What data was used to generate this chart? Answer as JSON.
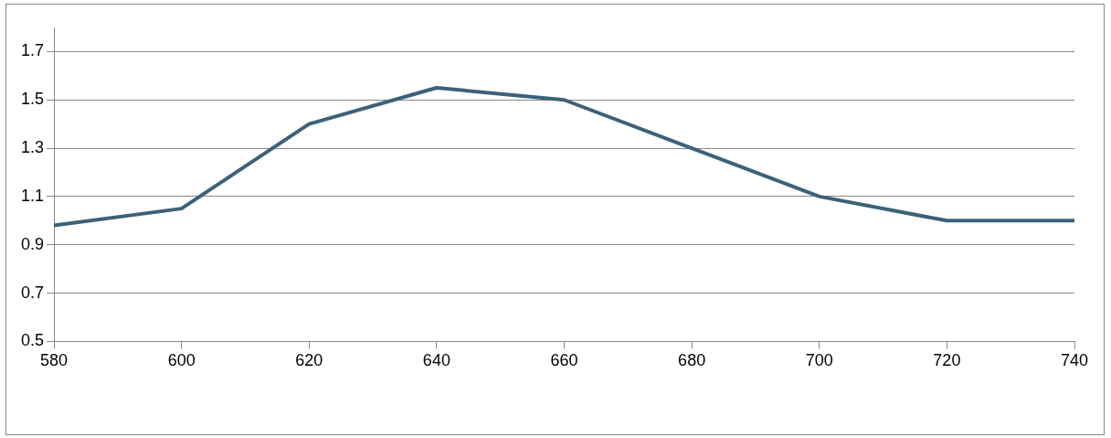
{
  "chart_data": {
    "type": "line",
    "x": [
      580,
      600,
      620,
      640,
      660,
      680,
      700,
      720,
      740
    ],
    "series": [
      {
        "color": "#3d6178",
        "values": [
          0.98,
          1.05,
          1.4,
          1.55,
          1.5,
          1.3,
          1.1,
          1.0,
          1.0
        ]
      }
    ],
    "xlim": [
      580,
      740
    ],
    "xticks": [
      580,
      600,
      620,
      640,
      660,
      680,
      700,
      720,
      740
    ],
    "ylim": [
      0.5,
      1.8
    ],
    "yticks": [
      0.5,
      0.7,
      0.9,
      1.1,
      1.3,
      1.5,
      1.7
    ],
    "grid": "y",
    "legend": false,
    "marker": "none",
    "line_style": "solid"
  }
}
